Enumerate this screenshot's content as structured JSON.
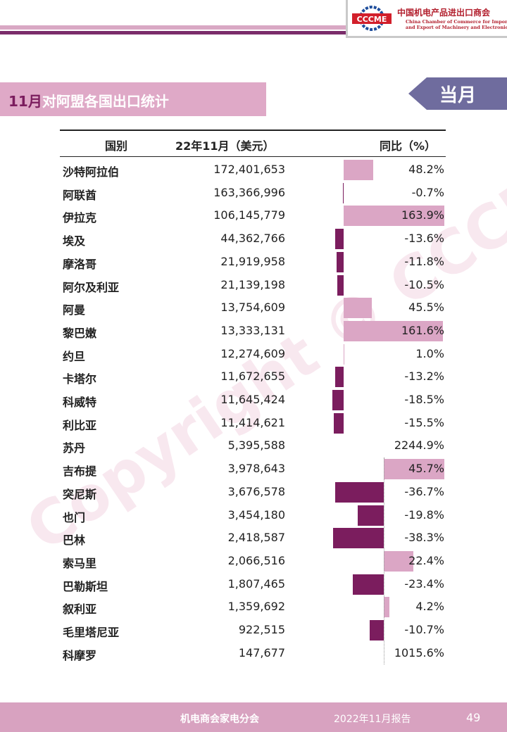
{
  "header": {
    "org_name_cn": "中国机电产品进出口商会",
    "org_name_en_line1": "China Chamber of Commerce for Import",
    "org_name_en_line2": "and Export of Machinery and Electronic Products",
    "logo_text": "CCCME"
  },
  "title": {
    "month": "11月",
    "text": "对阿盟各国出口统计"
  },
  "period_tag": "当月",
  "table": {
    "columns": [
      "国别",
      "22年11月（美元）",
      "同比（%）"
    ],
    "rows": [
      {
        "country": "沙特阿拉伯",
        "value": "172,401,653",
        "yoy": "48.2%",
        "yoy_num": 48.2
      },
      {
        "country": "阿联酋",
        "value": "163,366,996",
        "yoy": "-0.7%",
        "yoy_num": -0.7
      },
      {
        "country": "伊拉克",
        "value": "106,145,779",
        "yoy": "163.9%",
        "yoy_num": 163.9
      },
      {
        "country": "埃及",
        "value": "44,362,766",
        "yoy": "-13.6%",
        "yoy_num": -13.6
      },
      {
        "country": "摩洛哥",
        "value": "21,919,958",
        "yoy": "-11.8%",
        "yoy_num": -11.8
      },
      {
        "country": "阿尔及利亚",
        "value": "21,139,198",
        "yoy": "-10.5%",
        "yoy_num": -10.5
      },
      {
        "country": "阿曼",
        "value": "13,754,609",
        "yoy": "45.5%",
        "yoy_num": 45.5
      },
      {
        "country": "黎巴嫩",
        "value": "13,333,131",
        "yoy": "161.6%",
        "yoy_num": 161.6
      },
      {
        "country": "约旦",
        "value": "12,274,609",
        "yoy": "1.0%",
        "yoy_num": 1.0
      },
      {
        "country": "卡塔尔",
        "value": "11,672,655",
        "yoy": "-13.2%",
        "yoy_num": -13.2
      },
      {
        "country": "科威特",
        "value": "11,645,424",
        "yoy": "-18.5%",
        "yoy_num": -18.5
      },
      {
        "country": "利比亚",
        "value": "11,414,621",
        "yoy": "-15.5%",
        "yoy_num": -15.5
      },
      {
        "country": "苏丹",
        "value": "5,395,588",
        "yoy": "2244.9%",
        "yoy_num": 2244.9
      },
      {
        "country": "吉布提",
        "value": "3,978,643",
        "yoy": "45.7%",
        "yoy_num": 45.7
      },
      {
        "country": "突尼斯",
        "value": "3,676,578",
        "yoy": "-36.7%",
        "yoy_num": -36.7
      },
      {
        "country": "也门",
        "value": "3,454,180",
        "yoy": "-19.8%",
        "yoy_num": -19.8
      },
      {
        "country": "巴林",
        "value": "2,418,587",
        "yoy": "-38.3%",
        "yoy_num": -38.3
      },
      {
        "country": "索马里",
        "value": "2,066,516",
        "yoy": "22.4%",
        "yoy_num": 22.4
      },
      {
        "country": "巴勒斯坦",
        "value": "1,807,465",
        "yoy": "-23.4%",
        "yoy_num": -23.4
      },
      {
        "country": "叙利亚",
        "value": "1,359,692",
        "yoy": "4.2%",
        "yoy_num": 4.2
      },
      {
        "country": "毛里塔尼亚",
        "value": "922,515",
        "yoy": "-10.7%",
        "yoy_num": -10.7
      },
      {
        "country": "科摩罗",
        "value": "147,677",
        "yoy": "1015.6%",
        "yoy_num": 1015.6
      }
    ]
  },
  "colors": {
    "positive_bar": "#dba6c5",
    "negative_bar": "#7b1d5e",
    "accent": "#7b2d6b",
    "tag_bg": "#6f6c9e"
  },
  "watermark": "Copyright © CCCME",
  "footer": {
    "org": "机电商会家电分会",
    "report": "2022年11月报告",
    "page": "49"
  }
}
